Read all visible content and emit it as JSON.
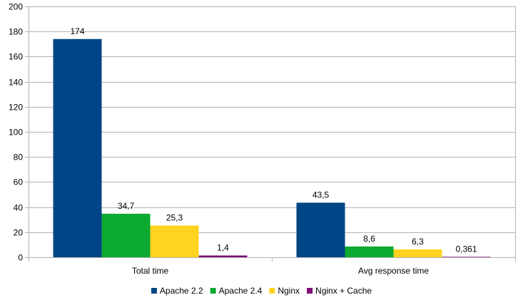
{
  "chart_data": {
    "type": "bar",
    "categories": [
      "Total time",
      "Avg response time"
    ],
    "series": [
      {
        "name": "Apache 2.2",
        "values": [
          174,
          43.5
        ],
        "labels": [
          "174",
          "43,5"
        ],
        "color": "#004586"
      },
      {
        "name": "Apache 2.4",
        "values": [
          34.7,
          8.6
        ],
        "labels": [
          "34,7",
          "8,6"
        ],
        "color": "#0DAA32"
      },
      {
        "name": "Nginx",
        "values": [
          25.3,
          6.3
        ],
        "labels": [
          "25,3",
          "6,3"
        ],
        "color": "#FFD320"
      },
      {
        "name": "Nginx + Cache",
        "values": [
          1.4,
          0.361
        ],
        "labels": [
          "1,4",
          "0,361"
        ],
        "color": "#7E0F78"
      }
    ],
    "ylim": [
      0,
      200
    ],
    "yticks": [
      0,
      20,
      40,
      60,
      80,
      100,
      120,
      140,
      160,
      180,
      200
    ],
    "grid": true,
    "legend_position": "bottom",
    "colors": {
      "grid": "#B3B3B3",
      "axis": "#B3B3B3",
      "text": "#000000"
    }
  }
}
